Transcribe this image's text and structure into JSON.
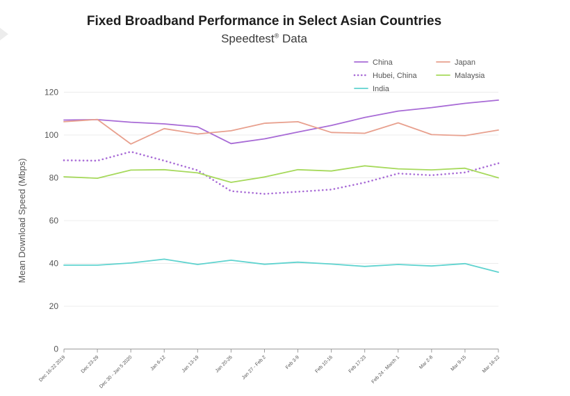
{
  "chart_data": {
    "type": "line",
    "title": "Fixed Broadband Performance in Select Asian Countries",
    "subtitle": "Speedtest",
    "subtitle_mark": "®",
    "subtitle_tail": " Data",
    "xlabel": "",
    "ylabel": "Mean Download Speed (Mbps)",
    "ylim": [
      0,
      120
    ],
    "yticks": [
      0,
      20,
      40,
      60,
      80,
      100,
      120
    ],
    "grid": true,
    "legend_position": "top-right",
    "categories": [
      "Dec 16-22 2019",
      "Dec 23-29",
      "Dec 30 - Jan 5 2020",
      "Jan 6-12",
      "Jan 13-19",
      "Jan 20-26",
      "Jan 27 - Feb 2",
      "Feb 3-9",
      "Feb 10-16",
      "Feb 17-23",
      "Feb 24 - March 1",
      "Mar 2-8",
      "Mar 9-15",
      "Mar 16-22"
    ],
    "series": [
      {
        "name": "China",
        "color": "#a86bd6",
        "dashed": false,
        "values": [
          107,
          107.2,
          106,
          105.2,
          103.8,
          96,
          98.2,
          101.4,
          104.5,
          108.2,
          111.2,
          112.8,
          114.8,
          116.3
        ]
      },
      {
        "name": "Hubei, China",
        "color": "#a86bd6",
        "dashed": true,
        "values": [
          88.2,
          88,
          92.2,
          88,
          83.5,
          73.8,
          72.5,
          73.5,
          74.5,
          77.8,
          82,
          81.2,
          82.5,
          86.8
        ]
      },
      {
        "name": "India",
        "color": "#5fd3cf",
        "dashed": false,
        "values": [
          39.2,
          39.2,
          40.2,
          42,
          39.5,
          41.5,
          39.6,
          40.6,
          39.7,
          38.6,
          39.5,
          38.8,
          39.9,
          35.9
        ]
      },
      {
        "name": "Japan",
        "color": "#e8a08e",
        "dashed": false,
        "values": [
          106.2,
          107.3,
          95.8,
          103,
          100.5,
          102,
          105.5,
          106.2,
          101.2,
          100.8,
          105.7,
          100.2,
          99.7,
          102.3
        ]
      },
      {
        "name": "Malaysia",
        "color": "#a6d95b",
        "dashed": false,
        "values": [
          80.5,
          79.8,
          83.6,
          83.8,
          82.3,
          77.9,
          80.4,
          83.8,
          83.2,
          85.6,
          84.2,
          83.7,
          84.5,
          80
        ]
      }
    ]
  }
}
